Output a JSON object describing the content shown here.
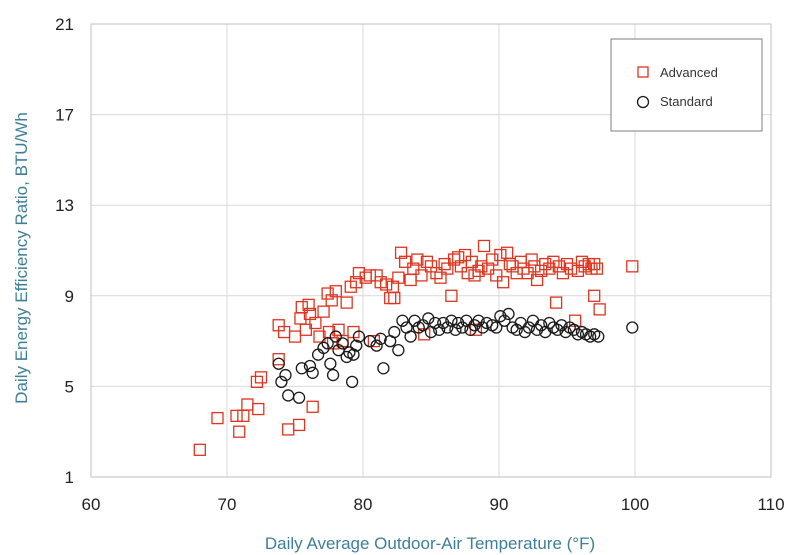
{
  "chart_data": {
    "type": "scatter",
    "title": "",
    "xlabel": "Daily Average Outdoor-Air Temperature (°F)",
    "ylabel": "Daily Energy Efficiency Ratio, BTU/Wh",
    "xlim": [
      60,
      110
    ],
    "ylim": [
      1,
      21
    ],
    "x_ticks": [
      "60",
      "70",
      "80",
      "90",
      "100",
      "110"
    ],
    "y_ticks": [
      "1",
      "5",
      "9",
      "13",
      "17",
      "21"
    ],
    "grid": true,
    "legend_position": "top-right",
    "series": [
      {
        "name": "Advanced",
        "marker": "square",
        "color": "#e0341e",
        "points": [
          [
            68.0,
            2.2
          ],
          [
            69.3,
            3.6
          ],
          [
            70.7,
            3.7
          ],
          [
            71.2,
            3.7
          ],
          [
            70.9,
            3.0
          ],
          [
            71.5,
            4.2
          ],
          [
            72.3,
            4.0
          ],
          [
            72.2,
            5.2
          ],
          [
            72.5,
            5.4
          ],
          [
            73.8,
            6.2
          ],
          [
            73.8,
            7.7
          ],
          [
            74.5,
            3.1
          ],
          [
            74.2,
            7.4
          ],
          [
            75.3,
            3.3
          ],
          [
            75.0,
            7.2
          ],
          [
            75.4,
            8.0
          ],
          [
            75.5,
            8.5
          ],
          [
            76.1,
            8.2
          ],
          [
            75.8,
            7.5
          ],
          [
            76.0,
            8.6
          ],
          [
            76.3,
            4.1
          ],
          [
            76.5,
            7.8
          ],
          [
            76.8,
            7.2
          ],
          [
            77.1,
            8.3
          ],
          [
            77.4,
            9.1
          ],
          [
            77.5,
            7.4
          ],
          [
            77.8,
            6.9
          ],
          [
            77.7,
            8.8
          ],
          [
            78.0,
            9.2
          ],
          [
            78.2,
            7.5
          ],
          [
            78.5,
            7.0
          ],
          [
            78.8,
            8.7
          ],
          [
            79.1,
            9.4
          ],
          [
            79.3,
            7.4
          ],
          [
            79.5,
            9.6
          ],
          [
            79.7,
            10.0
          ],
          [
            80.2,
            9.8
          ],
          [
            80.5,
            9.9
          ],
          [
            81.0,
            9.9
          ],
          [
            81.3,
            9.6
          ],
          [
            81.7,
            9.5
          ],
          [
            82.0,
            8.9
          ],
          [
            82.2,
            9.4
          ],
          [
            82.6,
            9.8
          ],
          [
            82.8,
            10.9
          ],
          [
            83.1,
            10.5
          ],
          [
            83.5,
            9.7
          ],
          [
            83.7,
            10.2
          ],
          [
            84.0,
            10.6
          ],
          [
            84.3,
            9.9
          ],
          [
            84.7,
            10.5
          ],
          [
            85.0,
            10.3
          ],
          [
            85.4,
            10.0
          ],
          [
            85.7,
            9.8
          ],
          [
            86.0,
            10.4
          ],
          [
            86.2,
            10.2
          ],
          [
            86.5,
            9.0
          ],
          [
            86.7,
            10.6
          ],
          [
            87.0,
            10.7
          ],
          [
            87.2,
            10.3
          ],
          [
            87.5,
            10.8
          ],
          [
            87.7,
            10.0
          ],
          [
            88.0,
            10.5
          ],
          [
            88.2,
            9.9
          ],
          [
            88.5,
            10.1
          ],
          [
            88.7,
            10.3
          ],
          [
            88.9,
            11.2
          ],
          [
            89.2,
            10.2
          ],
          [
            89.5,
            10.6
          ],
          [
            89.8,
            9.9
          ],
          [
            90.1,
            10.8
          ],
          [
            90.3,
            9.6
          ],
          [
            90.6,
            10.9
          ],
          [
            90.8,
            10.4
          ],
          [
            91.0,
            10.3
          ],
          [
            91.3,
            10.0
          ],
          [
            91.6,
            10.5
          ],
          [
            91.8,
            10.2
          ],
          [
            92.1,
            10.0
          ],
          [
            92.4,
            10.6
          ],
          [
            92.6,
            10.3
          ],
          [
            92.8,
            9.7
          ],
          [
            93.1,
            10.1
          ],
          [
            93.4,
            10.4
          ],
          [
            93.7,
            10.2
          ],
          [
            94.0,
            10.5
          ],
          [
            94.2,
            8.7
          ],
          [
            94.4,
            10.3
          ],
          [
            94.7,
            10.0
          ],
          [
            95.0,
            10.4
          ],
          [
            95.3,
            10.2
          ],
          [
            95.6,
            7.9
          ],
          [
            95.8,
            10.1
          ],
          [
            96.1,
            10.5
          ],
          [
            96.3,
            10.3
          ],
          [
            96.6,
            10.4
          ],
          [
            96.8,
            10.2
          ],
          [
            97.0,
            10.4
          ],
          [
            97.0,
            9.0
          ],
          [
            97.2,
            10.2
          ],
          [
            97.4,
            8.4
          ],
          [
            99.8,
            10.3
          ],
          [
            82.3,
            8.9
          ],
          [
            84.5,
            7.3
          ],
          [
            88.3,
            7.5
          ],
          [
            80.8,
            7.0
          ]
        ]
      },
      {
        "name": "Standard",
        "marker": "circle",
        "color": "#1a1a1a",
        "points": [
          [
            73.8,
            6.0
          ],
          [
            74.0,
            5.2
          ],
          [
            74.3,
            5.5
          ],
          [
            74.5,
            4.6
          ],
          [
            75.3,
            4.5
          ],
          [
            75.5,
            5.8
          ],
          [
            76.1,
            5.9
          ],
          [
            76.3,
            5.6
          ],
          [
            76.7,
            6.4
          ],
          [
            77.1,
            6.7
          ],
          [
            77.4,
            6.9
          ],
          [
            77.6,
            6.0
          ],
          [
            77.8,
            5.5
          ],
          [
            78.0,
            7.2
          ],
          [
            78.2,
            6.6
          ],
          [
            78.5,
            6.9
          ],
          [
            78.8,
            6.3
          ],
          [
            79.0,
            6.5
          ],
          [
            79.3,
            6.4
          ],
          [
            79.5,
            6.8
          ],
          [
            79.7,
            7.2
          ],
          [
            79.2,
            5.2
          ],
          [
            80.5,
            7.0
          ],
          [
            81.0,
            6.8
          ],
          [
            81.3,
            7.1
          ],
          [
            81.5,
            5.8
          ],
          [
            82.0,
            7.0
          ],
          [
            82.3,
            7.4
          ],
          [
            82.6,
            6.6
          ],
          [
            82.9,
            7.9
          ],
          [
            83.2,
            7.6
          ],
          [
            83.5,
            7.2
          ],
          [
            83.8,
            7.9
          ],
          [
            84.1,
            7.6
          ],
          [
            84.4,
            7.7
          ],
          [
            84.8,
            8.0
          ],
          [
            85.0,
            7.4
          ],
          [
            85.3,
            7.8
          ],
          [
            85.6,
            7.5
          ],
          [
            85.9,
            7.8
          ],
          [
            86.2,
            7.6
          ],
          [
            86.5,
            7.9
          ],
          [
            86.8,
            7.5
          ],
          [
            87.0,
            7.8
          ],
          [
            87.3,
            7.6
          ],
          [
            87.6,
            7.9
          ],
          [
            87.9,
            7.5
          ],
          [
            88.2,
            7.7
          ],
          [
            88.5,
            7.9
          ],
          [
            88.8,
            7.6
          ],
          [
            89.1,
            7.8
          ],
          [
            89.5,
            7.7
          ],
          [
            89.8,
            7.6
          ],
          [
            90.1,
            8.1
          ],
          [
            90.4,
            7.9
          ],
          [
            90.7,
            8.2
          ],
          [
            91.0,
            7.6
          ],
          [
            91.3,
            7.5
          ],
          [
            91.6,
            7.8
          ],
          [
            91.9,
            7.4
          ],
          [
            92.2,
            7.6
          ],
          [
            92.5,
            7.9
          ],
          [
            92.8,
            7.5
          ],
          [
            93.1,
            7.7
          ],
          [
            93.4,
            7.4
          ],
          [
            93.7,
            7.8
          ],
          [
            94.0,
            7.6
          ],
          [
            94.3,
            7.5
          ],
          [
            94.6,
            7.7
          ],
          [
            94.9,
            7.4
          ],
          [
            95.2,
            7.6
          ],
          [
            95.5,
            7.5
          ],
          [
            95.8,
            7.3
          ],
          [
            96.1,
            7.4
          ],
          [
            96.4,
            7.3
          ],
          [
            96.7,
            7.2
          ],
          [
            97.0,
            7.3
          ],
          [
            97.3,
            7.2
          ],
          [
            99.8,
            7.6
          ]
        ]
      }
    ]
  }
}
